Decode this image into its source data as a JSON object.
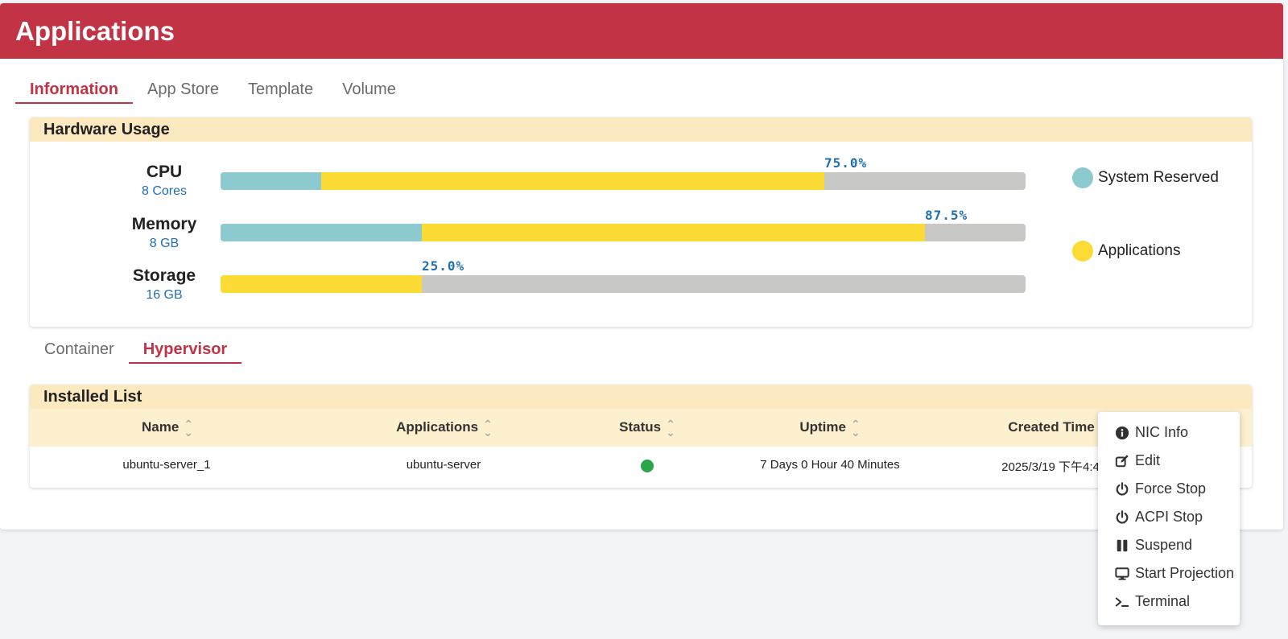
{
  "page": {
    "title": "Applications"
  },
  "top_tabs": [
    "Information",
    "App Store",
    "Template",
    "Volume"
  ],
  "hardware": {
    "title": "Hardware Usage",
    "resources": [
      {
        "name": "CPU",
        "sub": "8 Cores",
        "system_reserved": 12.5,
        "applications": 62.5,
        "percent_label": "75.0%"
      },
      {
        "name": "Memory",
        "sub": "8 GB",
        "system_reserved": 25.0,
        "applications": 62.5,
        "percent_label": "87.5%"
      },
      {
        "name": "Storage",
        "sub": "16 GB",
        "system_reserved": 0,
        "applications": 25.0,
        "percent_label": "25.0%"
      }
    ],
    "legend": [
      {
        "label": "System Reserved",
        "color": "#8ccad0"
      },
      {
        "label": "Applications",
        "color": "#fcdc34"
      }
    ]
  },
  "sub_tabs": [
    "Container",
    "Hypervisor"
  ],
  "installed": {
    "title": "Installed List",
    "columns": [
      "Name",
      "Applications",
      "Status",
      "Uptime",
      "Created Time"
    ],
    "rows": [
      {
        "name": "ubuntu-server_1",
        "application": "ubuntu-server",
        "status": "running",
        "uptime": "7 Days 0 Hour 40 Minutes",
        "created": "2025/3/19 下午4:4"
      }
    ]
  },
  "context_menu": {
    "items": [
      {
        "label": "NIC Info",
        "icon": "info-circle-icon"
      },
      {
        "label": "Edit",
        "icon": "edit-icon"
      },
      {
        "label": "Force Stop",
        "icon": "power-icon"
      },
      {
        "label": "ACPI Stop",
        "icon": "power-icon"
      },
      {
        "label": "Suspend",
        "icon": "pause-icon"
      },
      {
        "label": "Start Projection",
        "icon": "monitor-icon"
      },
      {
        "label": "Terminal",
        "icon": "terminal-icon"
      }
    ]
  },
  "colors": {
    "brand": "#c23345",
    "system_reserved": "#8ccad0",
    "applications": "#fcdc34",
    "running": "#2aa54a"
  }
}
